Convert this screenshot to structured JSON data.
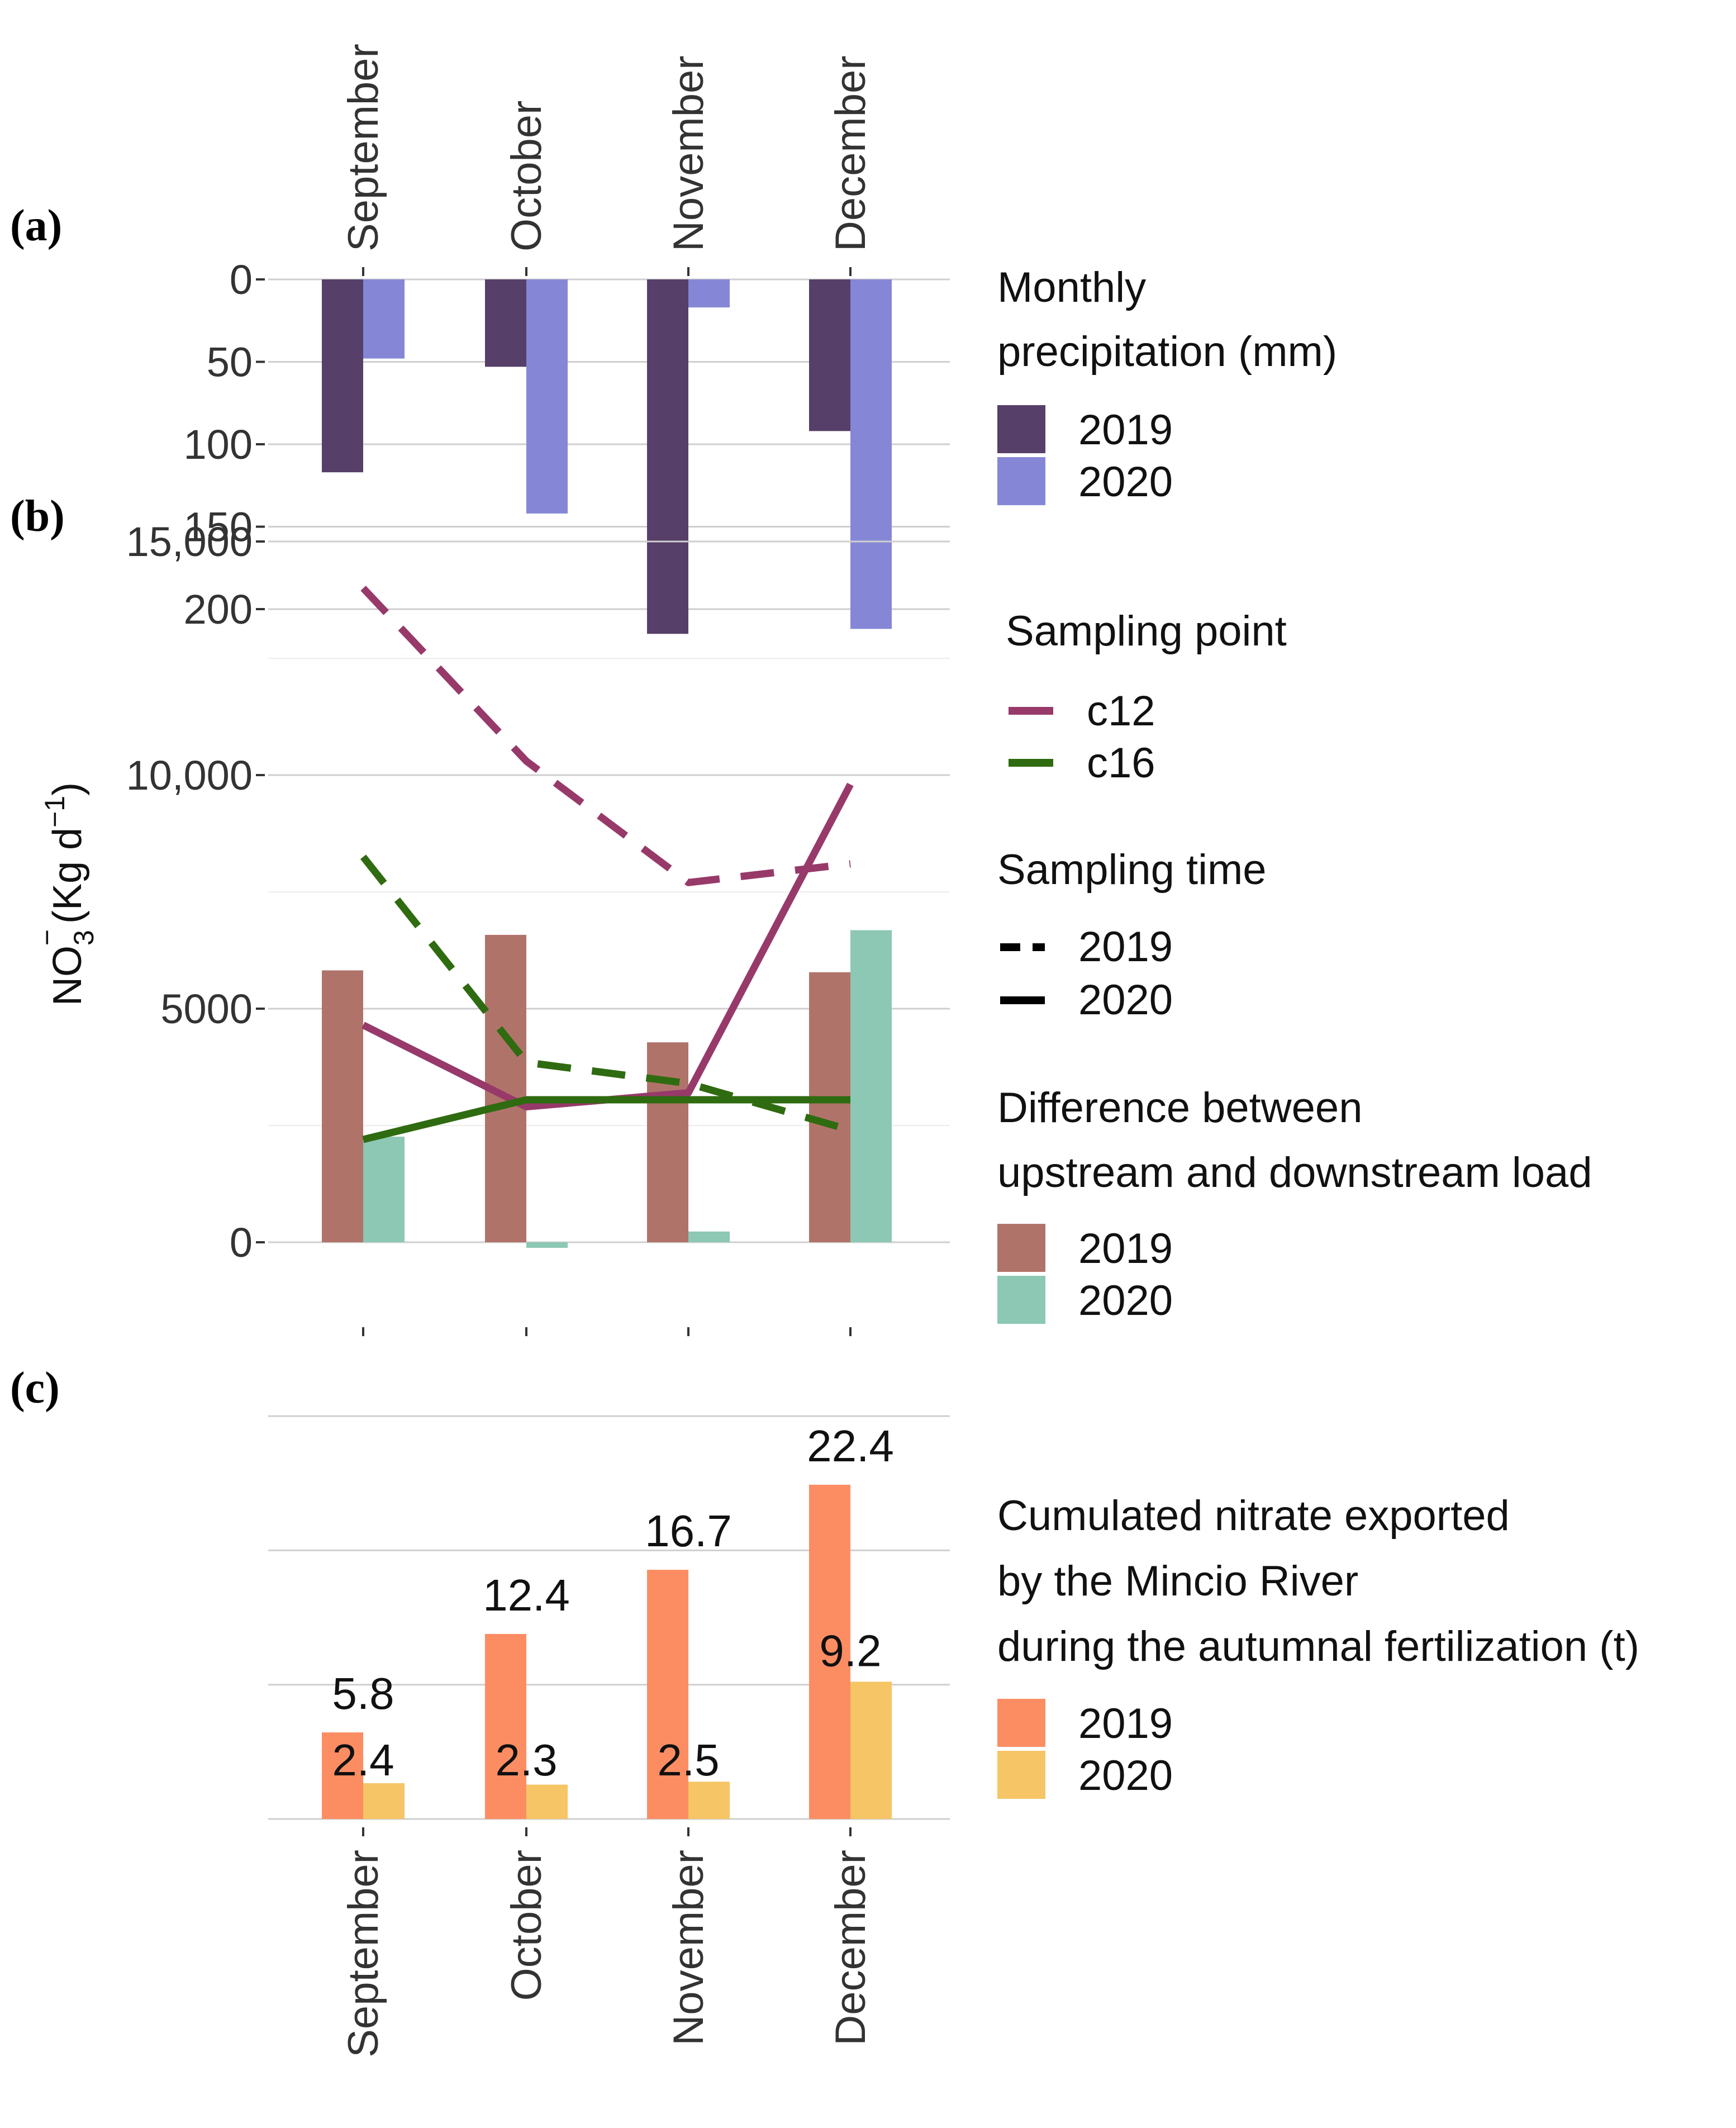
{
  "months": [
    "September",
    "October",
    "November",
    "December"
  ],
  "colors": {
    "grid": "#cfcfcf",
    "precip_2019": "#563f68",
    "precip_2020": "#8587d6",
    "c12": "#973a6a",
    "c16": "#2f6b10",
    "diff_2019": "#b0736a",
    "diff_2020": "#8cc8b4",
    "cum_2019": "#fc8d62",
    "cum_2020": "#f6c566"
  },
  "panel_labels": {
    "a": "(a)",
    "b": "(b)",
    "c": "(c)"
  },
  "legend_a": {
    "title_line1": "Monthly",
    "title_line2": "precipitation (mm)",
    "item1": "2019",
    "item2": "2020"
  },
  "legend_b": {
    "point_title": "Sampling point",
    "point1": "c12",
    "point2": "c16",
    "time_title": "Sampling time",
    "time1": "2019",
    "time2": "2020",
    "diff_title_line1": "Difference between",
    "diff_title_line2": "upstream and downstream load",
    "diff1": "2019",
    "diff2": "2020"
  },
  "legend_c": {
    "title_line1": "Cumulated nitrate exported",
    "title_line2": "by the Mincio River",
    "title_line3": "during the autumnal fertilization (t)",
    "item1": "2019",
    "item2": "2020"
  },
  "chart_data": [
    {
      "panel": "a",
      "type": "bar",
      "ylabel": "",
      "y_axis": "reversed",
      "ylim": [
        0,
        215
      ],
      "yticks": [
        0,
        50,
        100,
        150,
        200
      ],
      "categories": [
        "September",
        "October",
        "November",
        "December"
      ],
      "series": [
        {
          "name": "2019",
          "values": [
            117,
            53,
            215,
            92
          ]
        },
        {
          "name": "2020",
          "values": [
            48,
            142,
            17,
            212
          ]
        }
      ],
      "legend_title": "Monthly precipitation (mm)"
    },
    {
      "panel": "b",
      "type": "bar+line",
      "ylabel_main": "NO",
      "ylabel_sub": "3",
      "ylabel_sup": "−",
      "ylabel_unit": "(Kg d",
      "ylabel_unit_sup": "−1",
      "ylabel_close": ")",
      "ylim": [
        -1500,
        15000
      ],
      "yticks": [
        0,
        5000,
        10000,
        15000
      ],
      "ytick_labels": [
        "0",
        "5000",
        "10,000",
        "15,000"
      ],
      "categories": [
        "September",
        "October",
        "November",
        "December"
      ],
      "bars": [
        {
          "name": "2019",
          "values": [
            5820,
            6580,
            4280,
            5780
          ]
        },
        {
          "name": "2020",
          "values": [
            2260,
            -120,
            230,
            6680
          ]
        }
      ],
      "lines": [
        {
          "point": "c12",
          "time": "2019",
          "style": "dashed",
          "values": [
            14000,
            10300,
            7700,
            8100
          ]
        },
        {
          "point": "c12",
          "time": "2020",
          "style": "solid",
          "values": [
            4650,
            2900,
            3200,
            9800
          ]
        },
        {
          "point": "c16",
          "time": "2019",
          "style": "dashed",
          "values": [
            8250,
            3850,
            3400,
            2400
          ]
        },
        {
          "point": "c16",
          "time": "2020",
          "style": "solid",
          "values": [
            2200,
            3050,
            3050,
            3050
          ]
        }
      ]
    },
    {
      "panel": "c",
      "type": "bar",
      "ylim": [
        0,
        27
      ],
      "gridlines": [
        0,
        9,
        18,
        27
      ],
      "categories": [
        "September",
        "October",
        "November",
        "December"
      ],
      "series": [
        {
          "name": "2019",
          "values": [
            5.8,
            12.4,
            16.7,
            22.4
          ],
          "labels": [
            "5.8",
            "12.4",
            "16.7",
            "22.4"
          ]
        },
        {
          "name": "2020",
          "values": [
            2.4,
            2.3,
            2.5,
            9.2
          ],
          "labels": [
            "2.4",
            "2.3",
            "2.5",
            "9.2"
          ]
        }
      ],
      "legend_title": "Cumulated nitrate exported by the Mincio River during the autumnal fertilization (t)"
    }
  ]
}
